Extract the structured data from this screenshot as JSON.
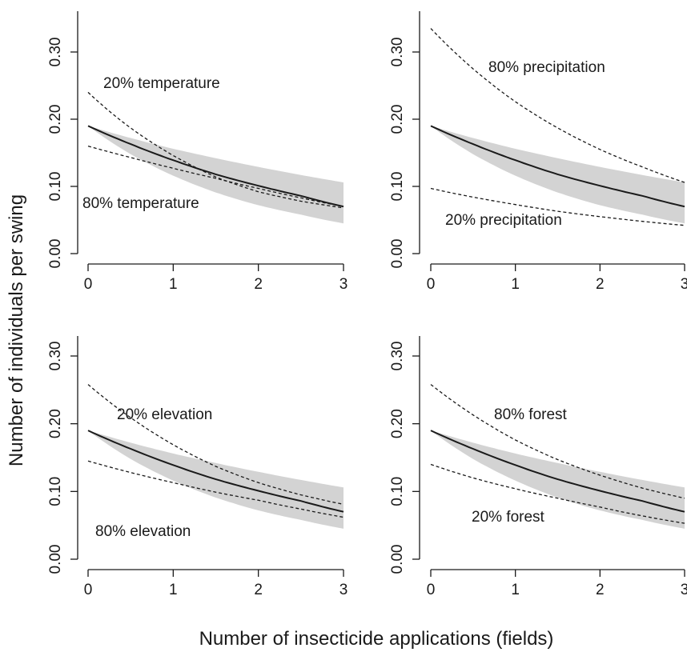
{
  "figure": {
    "ylabel": "Number of individuals per swing",
    "xlabel": "Number of insecticide applications (fields)",
    "colors": {
      "band": "#d3d3d3",
      "line": "#1a1a1a",
      "axis": "#1a1a1a"
    }
  },
  "chart_data": [
    {
      "type": "line",
      "panel": "top-left",
      "xlim": [
        0,
        3
      ],
      "ylim": [
        0,
        0.35
      ],
      "x_ticks": [
        0,
        1,
        2,
        3
      ],
      "x_tick_labels": [
        "0",
        "1",
        "2",
        "3"
      ],
      "y_ticks": [
        0,
        0.1,
        0.2,
        0.3
      ],
      "y_tick_labels": [
        "0.00",
        "0.10",
        "0.20",
        "0.30"
      ],
      "x": [
        0,
        0.5,
        1,
        1.5,
        2,
        2.5,
        3
      ],
      "series": [
        {
          "role": "mean",
          "style": "solid",
          "values": [
            0.19,
            0.163,
            0.139,
            0.118,
            0.101,
            0.086,
            0.07
          ]
        },
        {
          "role": "ci_upper",
          "style": "band",
          "values": [
            0.19,
            0.172,
            0.156,
            0.142,
            0.129,
            0.117,
            0.106
          ]
        },
        {
          "role": "ci_lower",
          "style": "band",
          "values": [
            0.19,
            0.148,
            0.116,
            0.091,
            0.072,
            0.058,
            0.045
          ]
        },
        {
          "name": "20% temperature",
          "style": "dashed",
          "values": [
            0.24,
            0.187,
            0.146,
            0.114,
            0.092,
            0.078,
            0.068
          ]
        },
        {
          "name": "80% temperature",
          "style": "dashed",
          "values": [
            0.16,
            0.143,
            0.127,
            0.112,
            0.097,
            0.083,
            0.07
          ]
        }
      ],
      "annotations": [
        "20% temperature",
        "80% temperature"
      ]
    },
    {
      "type": "line",
      "panel": "top-right",
      "xlim": [
        0,
        3
      ],
      "ylim": [
        0,
        0.35
      ],
      "x_ticks": [
        0,
        1,
        2,
        3
      ],
      "x_tick_labels": [
        "0",
        "1",
        "2",
        "3"
      ],
      "y_ticks": [
        0,
        0.1,
        0.2,
        0.3
      ],
      "y_tick_labels": [
        "0.00",
        "0.10",
        "0.20",
        "0.30"
      ],
      "x": [
        0,
        0.5,
        1,
        1.5,
        2,
        2.5,
        3
      ],
      "series": [
        {
          "role": "mean",
          "style": "solid",
          "values": [
            0.19,
            0.163,
            0.139,
            0.118,
            0.101,
            0.086,
            0.07
          ]
        },
        {
          "role": "ci_upper",
          "style": "band",
          "values": [
            0.19,
            0.172,
            0.156,
            0.142,
            0.129,
            0.117,
            0.106
          ]
        },
        {
          "role": "ci_lower",
          "style": "band",
          "values": [
            0.19,
            0.148,
            0.116,
            0.091,
            0.072,
            0.058,
            0.045
          ]
        },
        {
          "name": "80% precipitation",
          "style": "dashed",
          "values": [
            0.335,
            0.275,
            0.226,
            0.187,
            0.155,
            0.129,
            0.106
          ]
        },
        {
          "name": "20% precipitation",
          "style": "dashed",
          "values": [
            0.097,
            0.084,
            0.073,
            0.063,
            0.055,
            0.048,
            0.042
          ]
        }
      ],
      "annotations": [
        "80% precipitation",
        "20% precipitation"
      ]
    },
    {
      "type": "line",
      "panel": "bottom-left",
      "xlim": [
        0,
        3
      ],
      "ylim": [
        0,
        0.35
      ],
      "x_ticks": [
        0,
        1,
        2,
        3
      ],
      "x_tick_labels": [
        "0",
        "1",
        "2",
        "3"
      ],
      "y_ticks": [
        0,
        0.1,
        0.2,
        0.3
      ],
      "y_tick_labels": [
        "0.00",
        "0.10",
        "0.20",
        "0.30"
      ],
      "x": [
        0,
        0.5,
        1,
        1.5,
        2,
        2.5,
        3
      ],
      "series": [
        {
          "role": "mean",
          "style": "solid",
          "values": [
            0.19,
            0.163,
            0.139,
            0.118,
            0.101,
            0.086,
            0.07
          ]
        },
        {
          "role": "ci_upper",
          "style": "band",
          "values": [
            0.19,
            0.172,
            0.156,
            0.142,
            0.129,
            0.117,
            0.106
          ]
        },
        {
          "role": "ci_lower",
          "style": "band",
          "values": [
            0.19,
            0.148,
            0.116,
            0.091,
            0.072,
            0.058,
            0.045
          ]
        },
        {
          "name": "20% elevation",
          "style": "dashed",
          "values": [
            0.258,
            0.209,
            0.169,
            0.137,
            0.113,
            0.095,
            0.081
          ]
        },
        {
          "name": "80% elevation",
          "style": "dashed",
          "values": [
            0.145,
            0.128,
            0.113,
            0.099,
            0.087,
            0.074,
            0.062
          ]
        }
      ],
      "annotations": [
        "20% elevation",
        "80% elevation"
      ]
    },
    {
      "type": "line",
      "panel": "bottom-right",
      "xlim": [
        0,
        3
      ],
      "ylim": [
        0,
        0.35
      ],
      "x_ticks": [
        0,
        1,
        2,
        3
      ],
      "x_tick_labels": [
        "0",
        "1",
        "2",
        "3"
      ],
      "y_ticks": [
        0,
        0.1,
        0.2,
        0.3
      ],
      "y_tick_labels": [
        "0.00",
        "0.10",
        "0.20",
        "0.30"
      ],
      "x": [
        0,
        0.5,
        1,
        1.5,
        2,
        2.5,
        3
      ],
      "series": [
        {
          "role": "mean",
          "style": "solid",
          "values": [
            0.19,
            0.163,
            0.139,
            0.118,
            0.101,
            0.086,
            0.07
          ]
        },
        {
          "role": "ci_upper",
          "style": "band",
          "values": [
            0.19,
            0.172,
            0.156,
            0.142,
            0.129,
            0.117,
            0.106
          ]
        },
        {
          "role": "ci_lower",
          "style": "band",
          "values": [
            0.19,
            0.148,
            0.116,
            0.091,
            0.072,
            0.058,
            0.045
          ]
        },
        {
          "name": "80% forest",
          "style": "dashed",
          "values": [
            0.258,
            0.213,
            0.176,
            0.147,
            0.124,
            0.105,
            0.09
          ]
        },
        {
          "name": "20% forest",
          "style": "dashed",
          "values": [
            0.14,
            0.12,
            0.104,
            0.09,
            0.077,
            0.064,
            0.053
          ]
        }
      ],
      "annotations": [
        "80% forest",
        "20% forest"
      ]
    }
  ]
}
